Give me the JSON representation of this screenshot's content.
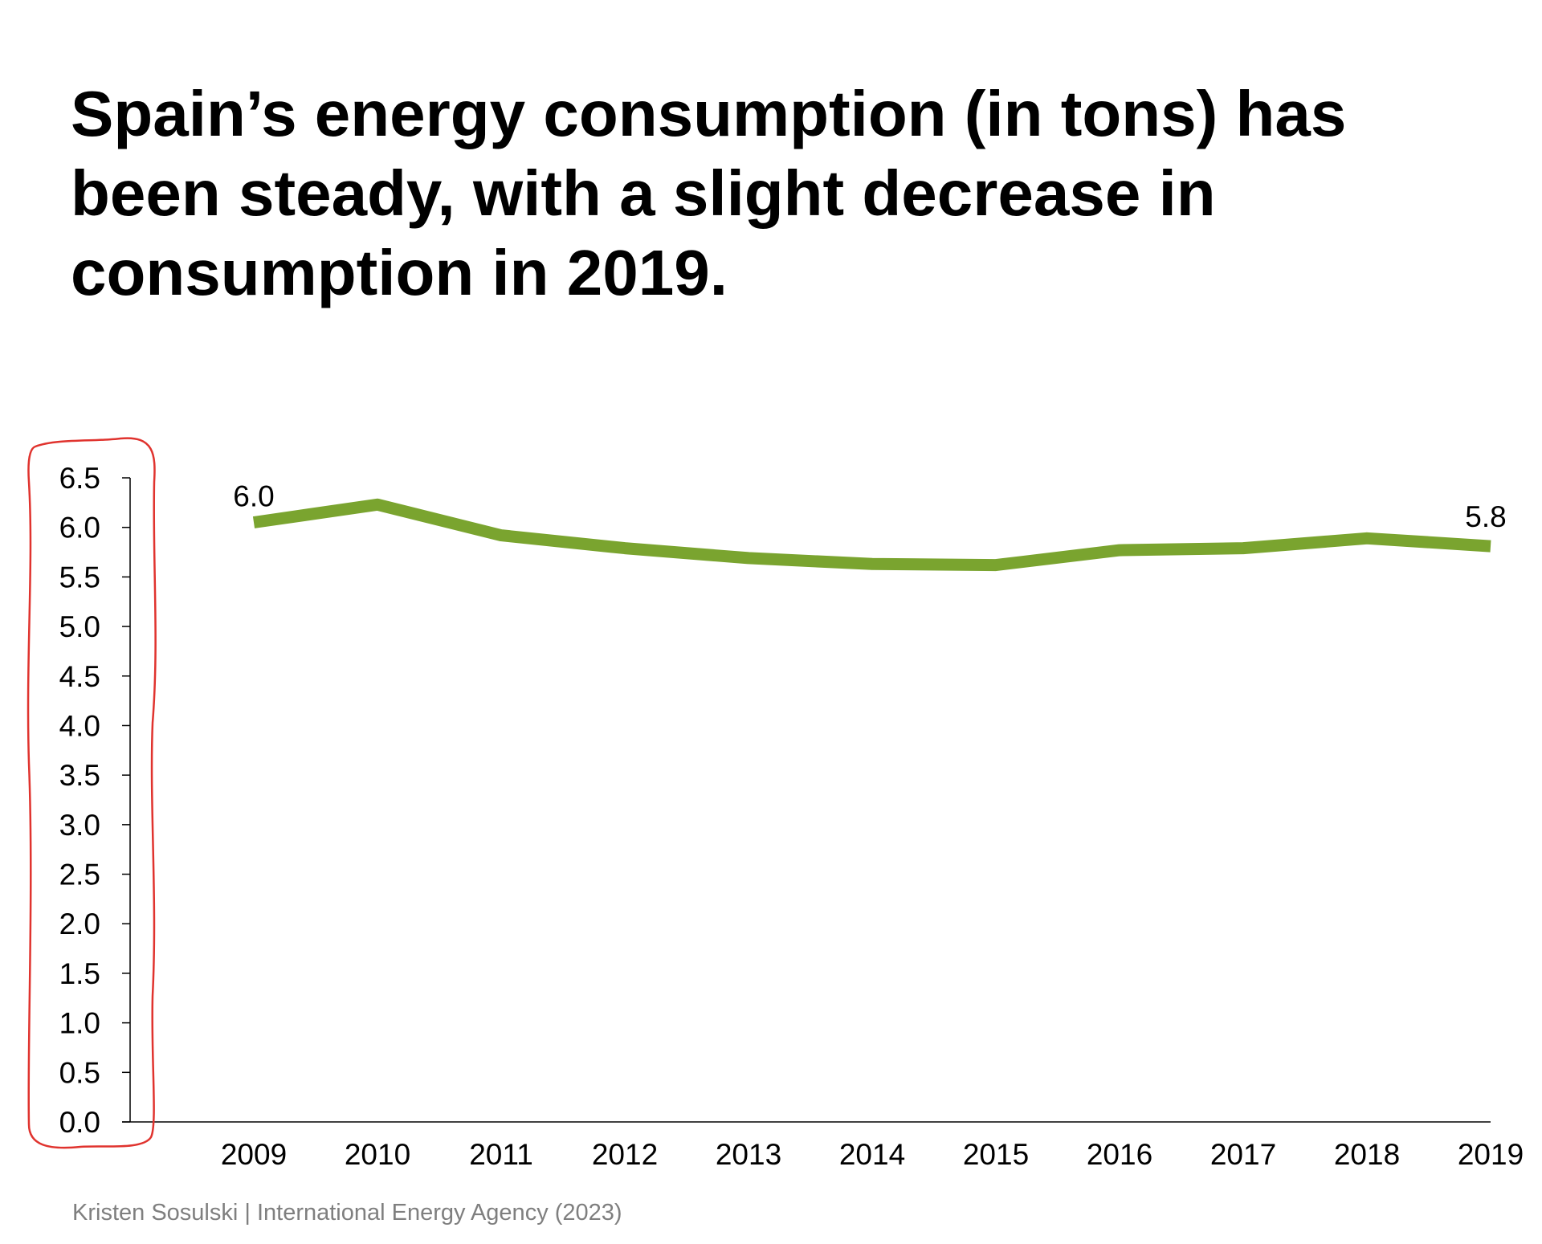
{
  "title": "Spain’s energy consumption (in tons) has been steady, with a slight decrease in consumption in 2019.",
  "source": "Kristen Sosulski | International Energy Agency (2023)",
  "colors": {
    "line": "#7aa42f",
    "axis": "#000000",
    "highlight": "#e0332e",
    "text": "#000000",
    "source": "#7f7f7f"
  },
  "chart_data": {
    "type": "line",
    "title": "Spain’s energy consumption (in tons) has been steady, with a slight decrease in consumption in 2019.",
    "xlabel": "",
    "ylabel": "",
    "x": [
      "2009",
      "2010",
      "2011",
      "2012",
      "2013",
      "2014",
      "2015",
      "2016",
      "2017",
      "2018",
      "2019"
    ],
    "series": [
      {
        "name": "Energy consumption (tons)",
        "values": [
          6.05,
          6.23,
          5.92,
          5.79,
          5.69,
          5.63,
          5.62,
          5.77,
          5.79,
          5.89,
          5.81
        ]
      }
    ],
    "ylim": [
      0,
      6.5
    ],
    "yticks": [
      "0.0",
      "0.5",
      "1.0",
      "1.5",
      "2.0",
      "2.5",
      "3.0",
      "3.5",
      "4.0",
      "4.5",
      "5.0",
      "5.5",
      "6.0",
      "6.5"
    ],
    "ytick_values": [
      0,
      0.5,
      1,
      1.5,
      2,
      2.5,
      3,
      3.5,
      4,
      4.5,
      5,
      5.5,
      6,
      6.5
    ],
    "data_labels": [
      {
        "index": 0,
        "text": "6.0"
      },
      {
        "index": 10,
        "text": "5.8"
      }
    ],
    "grid": false,
    "legend": "none",
    "annotation": "hand-drawn red outline around y-axis tick labels"
  }
}
